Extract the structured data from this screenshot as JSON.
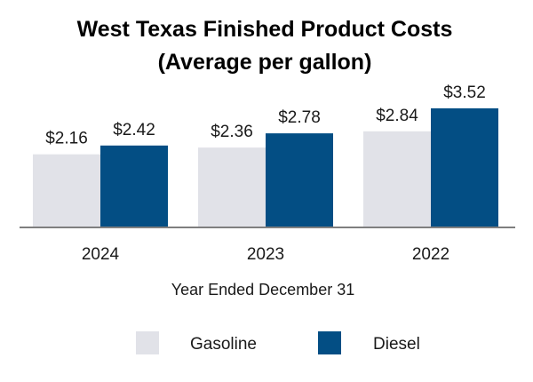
{
  "chart_data": {
    "type": "bar",
    "title": "West Texas Finished Product Costs",
    "subtitle": "(Average per gallon)",
    "xlabel": "Year Ended December 31",
    "ylabel": "",
    "categories": [
      "2024",
      "2023",
      "2022"
    ],
    "series": [
      {
        "name": "Gasoline",
        "color": "#e1e2e8",
        "values": [
          2.16,
          2.36,
          2.84
        ],
        "labels": [
          "$2.16",
          "$2.36",
          "$2.84"
        ]
      },
      {
        "name": "Diesel",
        "color": "#034e84",
        "values": [
          2.42,
          2.78,
          3.52
        ],
        "labels": [
          "$2.42",
          "$2.78",
          "$3.52"
        ]
      }
    ],
    "ylim": [
      0,
      4.2
    ],
    "grid": false,
    "legend": "bottom-center"
  }
}
